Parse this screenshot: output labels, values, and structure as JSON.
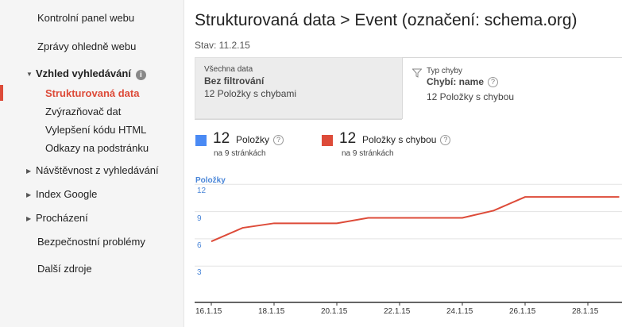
{
  "sidebar": {
    "items": [
      {
        "label": "Kontrolní panel webu"
      },
      {
        "label": "Zprávy ohledně webu"
      },
      {
        "label": "Vzhled vyhledávání",
        "expanded": true
      },
      {
        "label": "Návštěvnost z vyhledávání"
      },
      {
        "label": "Index Google"
      },
      {
        "label": "Procházení"
      },
      {
        "label": "Bezpečnostní problémy"
      },
      {
        "label": "Další zdroje"
      }
    ],
    "subitems": [
      {
        "label": "Strukturovaná data",
        "active": true
      },
      {
        "label": "Zvýrazňovač dat"
      },
      {
        "label": "Vylepšení kódu HTML"
      },
      {
        "label": "Odkazy na podstránku"
      }
    ]
  },
  "page": {
    "title": "Strukturovaná data > Event (označení: schema.org)",
    "status": "Stav: 11.2.15"
  },
  "tabs": {
    "all": {
      "small": "Všechna data",
      "bold": "Bez filtrování",
      "count": "12 Položky s chybami"
    },
    "error": {
      "small": "Typ chyby",
      "bold": "Chybí: name",
      "count": "12 Položky s chybou",
      "icon": "funnel-icon"
    }
  },
  "metrics": [
    {
      "value": "12",
      "label": "Položky",
      "sub": "na 9 stránkách",
      "color": "#4a8af4"
    },
    {
      "value": "12",
      "label": "Položky s chybou",
      "sub": "na 9 stránkách",
      "color": "#dd4b39"
    }
  ],
  "chart_data": {
    "type": "line",
    "series_title": "Položky",
    "x_ticks": [
      "16.1.15",
      "18.1.15",
      "20.1.15",
      "22.1.15",
      "24.1.15",
      "26.1.15",
      "28.1.15"
    ],
    "y_ticks": [
      "12",
      "9",
      "6",
      "3"
    ],
    "ylim": [
      0,
      12
    ],
    "series": [
      {
        "name": "Položky s chybou",
        "color": "#dd4b39",
        "x": [
          "16.1.15",
          "17.1.15",
          "18.1.15",
          "19.1.15",
          "20.1.15",
          "21.1.15",
          "22.1.15",
          "23.1.15",
          "24.1.15",
          "25.1.15",
          "26.1.15",
          "27.1.15",
          "28.1.15",
          "29.1.15"
        ],
        "values": [
          6.5,
          8,
          8.5,
          8.5,
          8.5,
          9.1,
          9.1,
          9.1,
          9.1,
          9.9,
          11.4,
          11.4,
          11.4,
          11.4
        ]
      }
    ],
    "grid": true
  }
}
